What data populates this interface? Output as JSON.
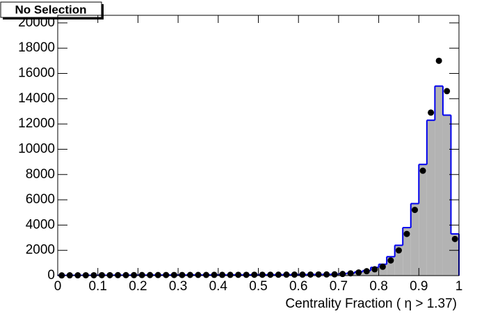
{
  "chart_data": {
    "type": "histogram",
    "title": "No Selection",
    "xlabel": "Centrality Fraction ( η > 1.37)",
    "bins": [
      0,
      0.02,
      0.04,
      0.06,
      0.08,
      0.1,
      0.12,
      0.14,
      0.16,
      0.18,
      0.2,
      0.22,
      0.24,
      0.26,
      0.28,
      0.3,
      0.32,
      0.34,
      0.36,
      0.38,
      0.4,
      0.42,
      0.44,
      0.46,
      0.48,
      0.5,
      0.52,
      0.54,
      0.56,
      0.58,
      0.6,
      0.62,
      0.64,
      0.66,
      0.68,
      0.7,
      0.72,
      0.74,
      0.76,
      0.78,
      0.8,
      0.82,
      0.84,
      0.86,
      0.88,
      0.9,
      0.92,
      0.94,
      0.96,
      0.98,
      1
    ],
    "values": [
      20,
      25,
      25,
      30,
      30,
      35,
      35,
      40,
      40,
      40,
      45,
      45,
      45,
      50,
      50,
      50,
      55,
      55,
      55,
      60,
      60,
      60,
      65,
      65,
      70,
      70,
      70,
      75,
      80,
      80,
      85,
      90,
      95,
      100,
      110,
      150,
      200,
      300,
      400,
      650,
      900,
      1500,
      2400,
      3800,
      5700,
      8800,
      12300,
      15000,
      12700,
      3300
    ],
    "color": "#0000ee",
    "fill": "#b3b3b3",
    "markers": [
      20,
      25,
      25,
      30,
      30,
      35,
      35,
      40,
      40,
      40,
      45,
      45,
      45,
      50,
      50,
      50,
      55,
      55,
      55,
      60,
      60,
      60,
      65,
      65,
      70,
      70,
      70,
      75,
      80,
      80,
      80,
      85,
      90,
      95,
      100,
      130,
      180,
      250,
      350,
      500,
      700,
      1200,
      2000,
      3300,
      5200,
      8300,
      12900,
      17000,
      14600,
      2900
    ],
    "marker_color": "#000000",
    "xlim": [
      0,
      1
    ],
    "xticks": [
      0,
      0.1,
      0.2,
      0.3,
      0.4,
      0.5,
      0.6,
      0.7,
      0.8,
      0.9,
      1
    ],
    "ylim": [
      0,
      20600
    ],
    "yticks": [
      0,
      2000,
      4000,
      6000,
      8000,
      10000,
      12000,
      14000,
      16000,
      18000,
      20000
    ]
  }
}
